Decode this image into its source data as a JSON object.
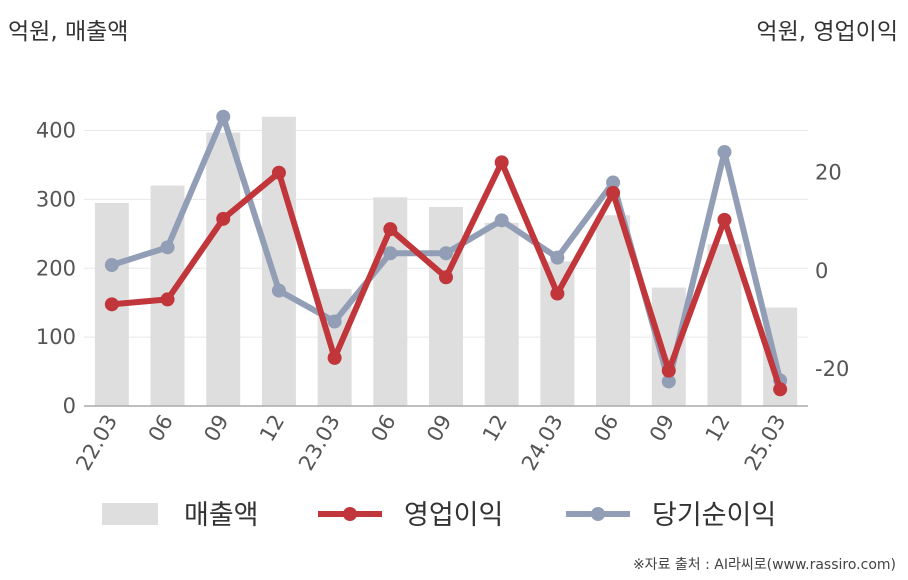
{
  "units": {
    "left": "억원, 매출액",
    "right": "억원, 영업이익"
  },
  "source": "※자료 출처 : AI라씨로(www.rassiro.com)",
  "colors": {
    "bar": "#dedede",
    "operating_profit": "#c0363a",
    "net_income": "#929db6",
    "grid": "#e8e8e8",
    "axis": "#aaaaaa"
  },
  "chart_data": {
    "type": "bar",
    "categories": [
      "22.03",
      "06",
      "09",
      "12",
      "23.03",
      "06",
      "09",
      "12",
      "24.03",
      "06",
      "09",
      "12",
      "25.03"
    ],
    "y_left": {
      "ticks": [
        0,
        100,
        200,
        300,
        400
      ],
      "ylim": [
        0,
        485
      ]
    },
    "y_right": {
      "ticks": [
        -20,
        0,
        20
      ],
      "ylim": [
        -27.5,
        40.5
      ]
    },
    "series": [
      {
        "name": "매출액",
        "type": "bar",
        "axis": "left",
        "values": [
          295,
          320,
          397,
          420,
          170,
          303,
          289,
          266,
          210,
          277,
          172,
          235,
          143
        ]
      },
      {
        "name": "영업이익",
        "type": "line",
        "axis": "right",
        "values": [
          -6.8,
          -5.8,
          10.6,
          20.0,
          -17.7,
          8.5,
          -1.3,
          22.1,
          -4.6,
          15.9,
          -20.3,
          10.4,
          -24.1
        ]
      },
      {
        "name": "당기순이익",
        "type": "line",
        "axis": "right",
        "values": [
          1.2,
          4.8,
          31.4,
          -4.0,
          -10.3,
          3.6,
          3.6,
          10.3,
          2.7,
          18.0,
          -22.5,
          24.2,
          -22.3
        ]
      }
    ],
    "legend_position": "bottom",
    "grid": true
  }
}
